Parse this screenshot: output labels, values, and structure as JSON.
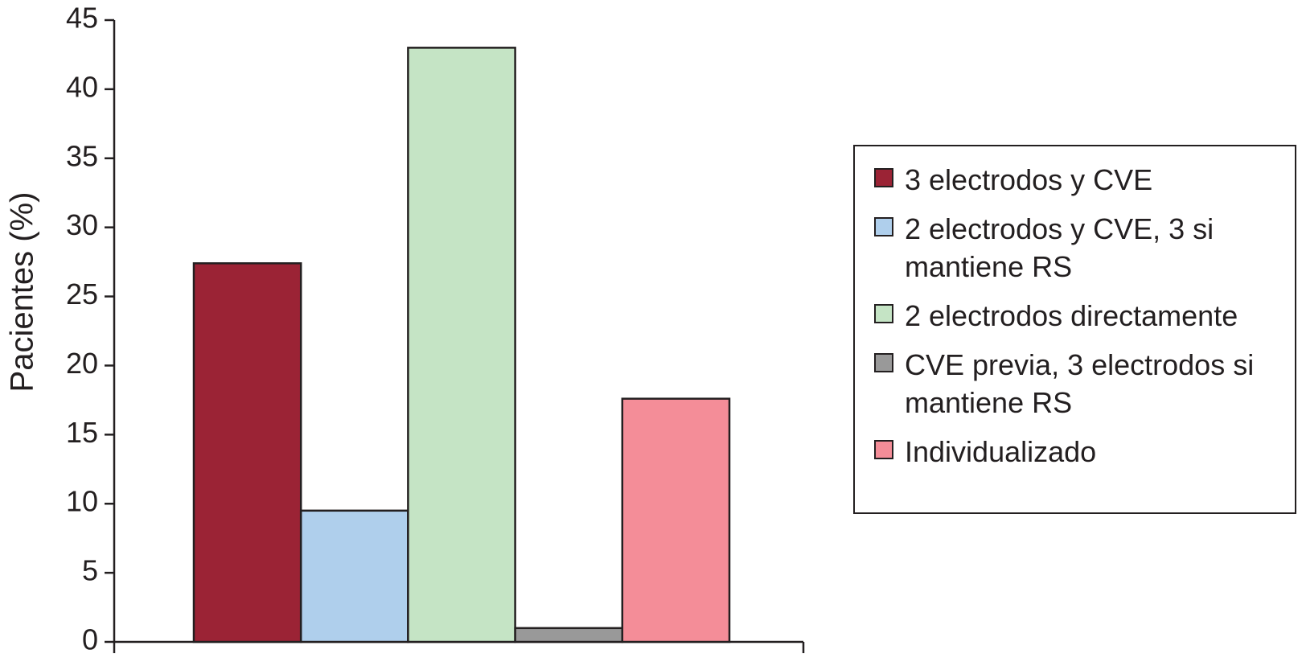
{
  "chart_data": {
    "type": "bar",
    "y_label": "Pacientes (%)",
    "categories": [
      null
    ],
    "series": [
      {
        "name": "3 electrodos y CVE",
        "color": "#9b2335",
        "values": [
          27.4
        ]
      },
      {
        "name": "2 electrodos y CVE, 3 si mantiene RS",
        "color": "#afcfec",
        "values": [
          9.5
        ]
      },
      {
        "name": "2 electrodos directamente",
        "color": "#c5e4c5",
        "values": [
          43
        ]
      },
      {
        "name": "CVE previa, 3 electrodos si mantiene RS",
        "color": "#999999",
        "values": [
          1
        ]
      },
      {
        "name": "Individualizado",
        "color": "#f48d98",
        "values": [
          17.6
        ]
      }
    ],
    "ylim": [
      0,
      45
    ],
    "yticks": [
      0,
      5,
      10,
      15,
      20,
      25,
      30,
      35,
      40,
      45
    ],
    "grid": false,
    "legend": "right"
  }
}
